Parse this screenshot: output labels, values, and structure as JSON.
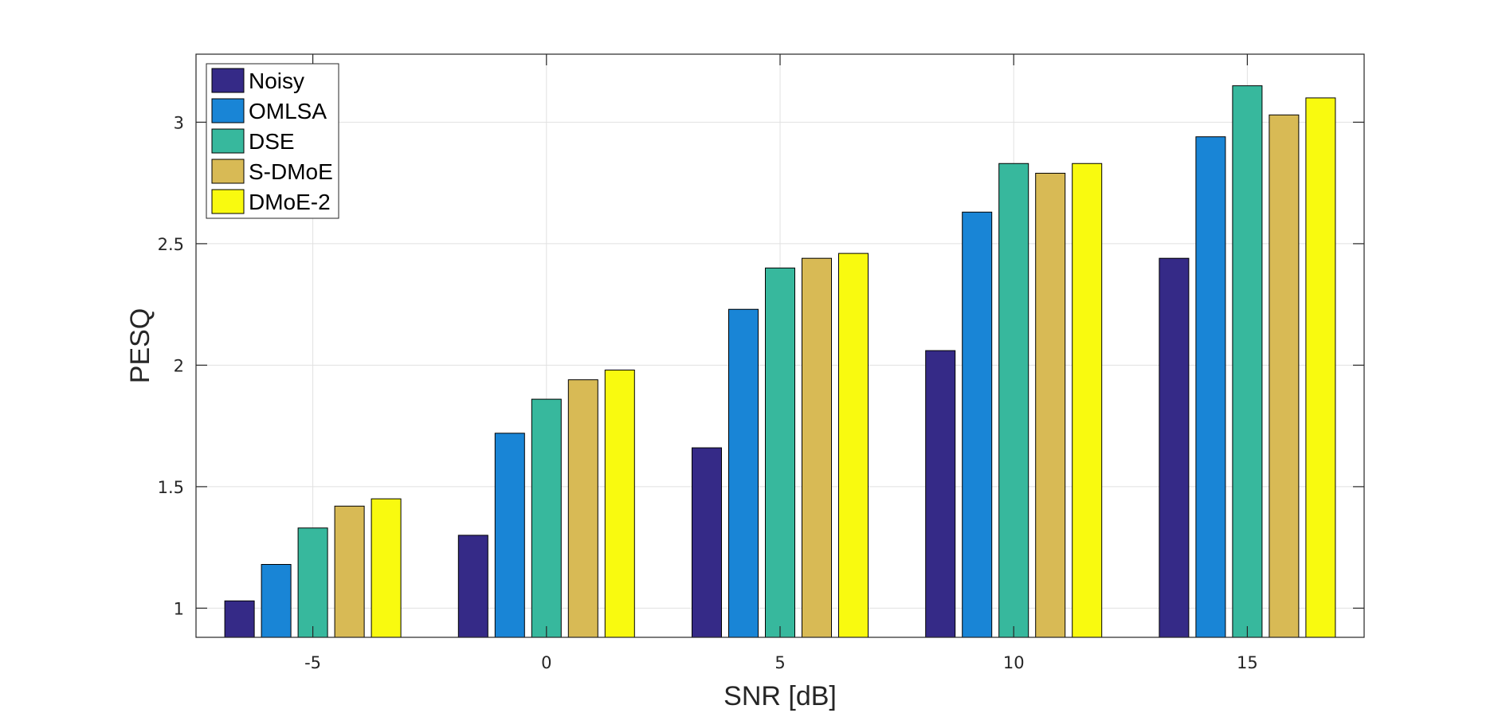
{
  "chart_data": {
    "type": "bar",
    "title": "",
    "xlabel": "SNR [dB]",
    "ylabel": "PESQ",
    "categories": [
      "-5",
      "0",
      "5",
      "10",
      "15"
    ],
    "yticks": [
      "1",
      "1.5",
      "2",
      "2.5",
      "3"
    ],
    "ylim": [
      0.88,
      3.28
    ],
    "grid": true,
    "legend_position": "top-left",
    "series": [
      {
        "name": "Noisy",
        "color": "#352a87",
        "values": [
          1.03,
          1.3,
          1.66,
          2.06,
          2.44
        ]
      },
      {
        "name": "OMLSA",
        "color": "#1985d6",
        "values": [
          1.18,
          1.72,
          2.23,
          2.63,
          2.94
        ]
      },
      {
        "name": "DSE",
        "color": "#37b89d",
        "values": [
          1.33,
          1.86,
          2.4,
          2.83,
          3.15
        ]
      },
      {
        "name": "S-DMoE",
        "color": "#d8ba55",
        "values": [
          1.42,
          1.94,
          2.44,
          2.79,
          3.03
        ]
      },
      {
        "name": "DMoE-2",
        "color": "#f9fa0f",
        "values": [
          1.45,
          1.98,
          2.46,
          2.83,
          3.1
        ]
      }
    ]
  }
}
